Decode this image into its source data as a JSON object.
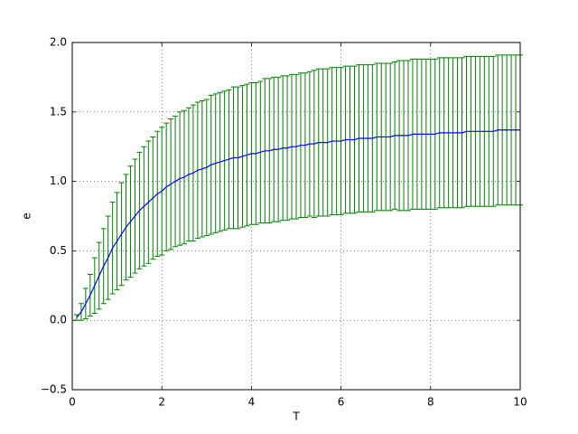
{
  "chart_data": {
    "type": "errorbar",
    "xlabel": "T",
    "ylabel": "e",
    "x": [
      0.1,
      0.2,
      0.3,
      0.4,
      0.5,
      0.6,
      0.7,
      0.8,
      0.9,
      1.0,
      1.1,
      1.2,
      1.3,
      1.4,
      1.5,
      1.6,
      1.7,
      1.8,
      1.9,
      2.0,
      2.1,
      2.2,
      2.3,
      2.4,
      2.5,
      2.6,
      2.7,
      2.8,
      2.9,
      3.0,
      3.1,
      3.2,
      3.3,
      3.4,
      3.5,
      3.6,
      3.7,
      3.8,
      3.9,
      4.0,
      4.1,
      4.2,
      4.3,
      4.4,
      4.5,
      4.6,
      4.7,
      4.8,
      4.9,
      5.0,
      5.1,
      5.2,
      5.3,
      5.4,
      5.5,
      5.6,
      5.7,
      5.8,
      5.9,
      6.0,
      6.1,
      6.2,
      6.3,
      6.4,
      6.5,
      6.6,
      6.7,
      6.8,
      6.9,
      7.0,
      7.1,
      7.2,
      7.3,
      7.4,
      7.5,
      7.6,
      7.7,
      7.8,
      7.9,
      8.0,
      8.1,
      8.2,
      8.3,
      8.4,
      8.5,
      8.6,
      8.7,
      8.8,
      8.9,
      9.0,
      9.1,
      9.2,
      9.3,
      9.4,
      9.5,
      9.6,
      9.7,
      9.8,
      9.9,
      10.0
    ],
    "values": [
      0.02,
      0.06,
      0.12,
      0.18,
      0.25,
      0.32,
      0.39,
      0.45,
      0.52,
      0.57,
      0.62,
      0.67,
      0.71,
      0.75,
      0.79,
      0.82,
      0.85,
      0.88,
      0.91,
      0.93,
      0.96,
      0.98,
      1.0,
      1.02,
      1.03,
      1.05,
      1.06,
      1.08,
      1.09,
      1.1,
      1.12,
      1.13,
      1.14,
      1.15,
      1.16,
      1.17,
      1.17,
      1.18,
      1.19,
      1.2,
      1.2,
      1.21,
      1.22,
      1.22,
      1.23,
      1.23,
      1.24,
      1.24,
      1.25,
      1.25,
      1.26,
      1.26,
      1.27,
      1.27,
      1.28,
      1.28,
      1.28,
      1.29,
      1.29,
      1.29,
      1.3,
      1.3,
      1.3,
      1.31,
      1.31,
      1.31,
      1.31,
      1.32,
      1.32,
      1.32,
      1.32,
      1.33,
      1.33,
      1.33,
      1.33,
      1.34,
      1.34,
      1.34,
      1.34,
      1.34,
      1.34,
      1.35,
      1.35,
      1.35,
      1.35,
      1.35,
      1.35,
      1.36,
      1.36,
      1.36,
      1.36,
      1.36,
      1.36,
      1.36,
      1.37,
      1.37,
      1.37,
      1.37,
      1.37,
      1.37
    ],
    "errors": [
      0.02,
      0.06,
      0.11,
      0.15,
      0.2,
      0.24,
      0.27,
      0.3,
      0.33,
      0.35,
      0.37,
      0.38,
      0.4,
      0.41,
      0.42,
      0.43,
      0.44,
      0.44,
      0.45,
      0.46,
      0.46,
      0.47,
      0.47,
      0.48,
      0.48,
      0.48,
      0.49,
      0.49,
      0.49,
      0.49,
      0.5,
      0.5,
      0.5,
      0.5,
      0.5,
      0.51,
      0.51,
      0.51,
      0.51,
      0.51,
      0.51,
      0.51,
      0.52,
      0.52,
      0.52,
      0.52,
      0.52,
      0.52,
      0.52,
      0.52,
      0.52,
      0.52,
      0.52,
      0.53,
      0.53,
      0.53,
      0.53,
      0.53,
      0.53,
      0.53,
      0.53,
      0.53,
      0.53,
      0.53,
      0.53,
      0.53,
      0.53,
      0.53,
      0.53,
      0.53,
      0.53,
      0.53,
      0.54,
      0.54,
      0.54,
      0.54,
      0.54,
      0.54,
      0.54,
      0.54,
      0.54,
      0.54,
      0.54,
      0.54,
      0.54,
      0.54,
      0.54,
      0.54,
      0.54,
      0.54,
      0.54,
      0.54,
      0.54,
      0.54,
      0.54,
      0.54,
      0.54,
      0.54,
      0.54,
      0.54
    ],
    "line_color": "#0000ff",
    "error_color": "#008000",
    "xlim": [
      0,
      10
    ],
    "xticks": [
      0,
      2,
      4,
      6,
      8,
      10
    ],
    "ylim": [
      -0.5,
      2.0
    ],
    "yticks": [
      {
        "value": -0.5,
        "label": "−0.5"
      },
      {
        "value": 0,
        "label": "0.0"
      },
      {
        "value": 0.5,
        "label": "0.5"
      },
      {
        "value": 1.0,
        "label": "1.0"
      },
      {
        "value": 1.5,
        "label": "1.5"
      },
      {
        "value": 2.0,
        "label": "2.0"
      }
    ],
    "grid": true
  }
}
